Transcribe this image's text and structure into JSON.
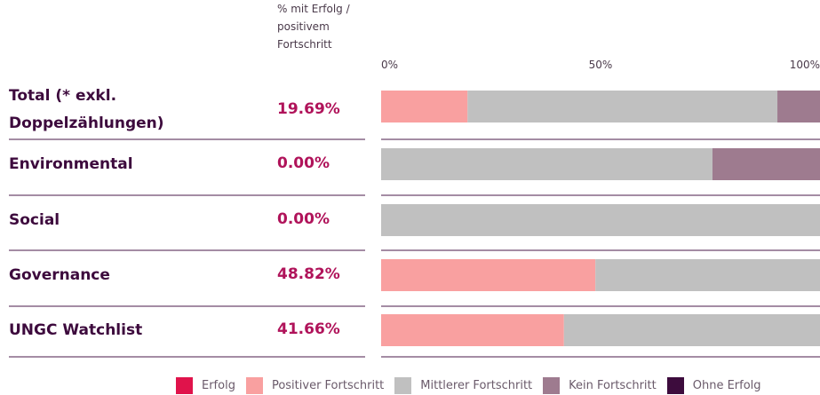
{
  "chart_data": {
    "type": "stacked_bar_horizontal",
    "column_header": [
      "% mit Erfolg /",
      "positivem",
      "Fortschritt"
    ],
    "categories": [
      "Total (* exkl. Doppelzählungen)",
      "Environmental",
      "Social",
      "Governance",
      "UNGC Watchlist"
    ],
    "success_pct": {
      "values": [
        19.69,
        0.0,
        0.0,
        48.82,
        41.66
      ],
      "value_labels": [
        "19.69%",
        "0.00%",
        "0.00%",
        "48.82%",
        "41.66%"
      ]
    },
    "xlim": [
      0,
      100
    ],
    "xticks": [
      {
        "value": 0,
        "label": "0%"
      },
      {
        "value": 50,
        "label": "50%"
      },
      {
        "value": 100,
        "label": "100%"
      }
    ],
    "series": [
      {
        "name": "Erfolg",
        "color": "#e0134b",
        "values": [
          0,
          0,
          0,
          0,
          0
        ]
      },
      {
        "name": "Positiver Fortschritt",
        "color": "#f9a0a0",
        "values": [
          19.69,
          0,
          0,
          48.82,
          41.66
        ]
      },
      {
        "name": "Mittlerer Fortschritt",
        "color": "#c0c0c0",
        "values": [
          70.6,
          75.5,
          100,
          51.18,
          58.34
        ]
      },
      {
        "name": "Kein Fortschritt",
        "color": "#9e7b8f",
        "values": [
          9.71,
          24.5,
          0,
          0,
          0
        ]
      },
      {
        "name": "Ohne Erfolg",
        "color": "#3d0c3d",
        "values": [
          0,
          0,
          0,
          0,
          0
        ]
      }
    ],
    "legend": "bottom"
  }
}
